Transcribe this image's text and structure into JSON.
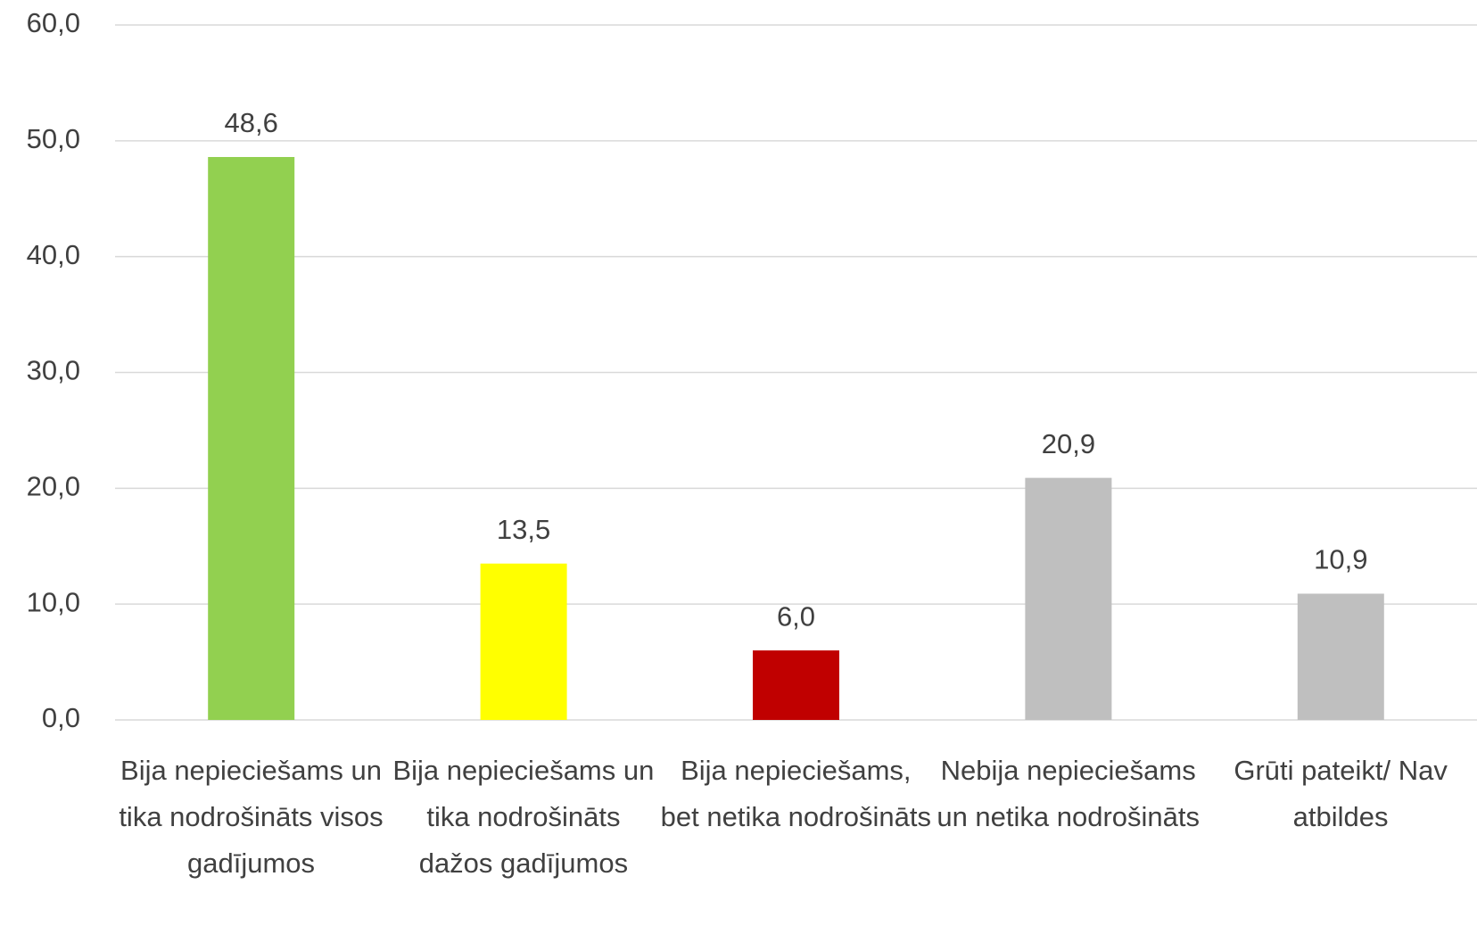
{
  "chart_data": {
    "type": "bar",
    "categories": [
      "Bija nepieciešams un tika nodrošināts visos gadījumos",
      "Bija nepieciešams un tika nodrošināts dažos gadījumos",
      "Bija nepieciešams, bet netika nodrošināts",
      "Nebija nepieciešams un netika nodrošināts",
      "Grūti pateikt/ Nav atbildes"
    ],
    "values": [
      48.6,
      13.5,
      6.0,
      20.9,
      10.9
    ],
    "value_labels": [
      "48,6",
      "13,5",
      "6,0",
      "20,9",
      "10,9"
    ],
    "colors": [
      "#92d050",
      "#ffff00",
      "#c00000",
      "#bfbfbf",
      "#bfbfbf"
    ],
    "ylim": [
      0,
      60
    ],
    "yticks": [
      {
        "value": 0,
        "label": "0,0"
      },
      {
        "value": 10,
        "label": "10,0"
      },
      {
        "value": 20,
        "label": "20,0"
      },
      {
        "value": 30,
        "label": "30,0"
      },
      {
        "value": 40,
        "label": "40,0"
      },
      {
        "value": 50,
        "label": "50,0"
      },
      {
        "value": 60,
        "label": "60,0"
      }
    ],
    "grid": true
  }
}
